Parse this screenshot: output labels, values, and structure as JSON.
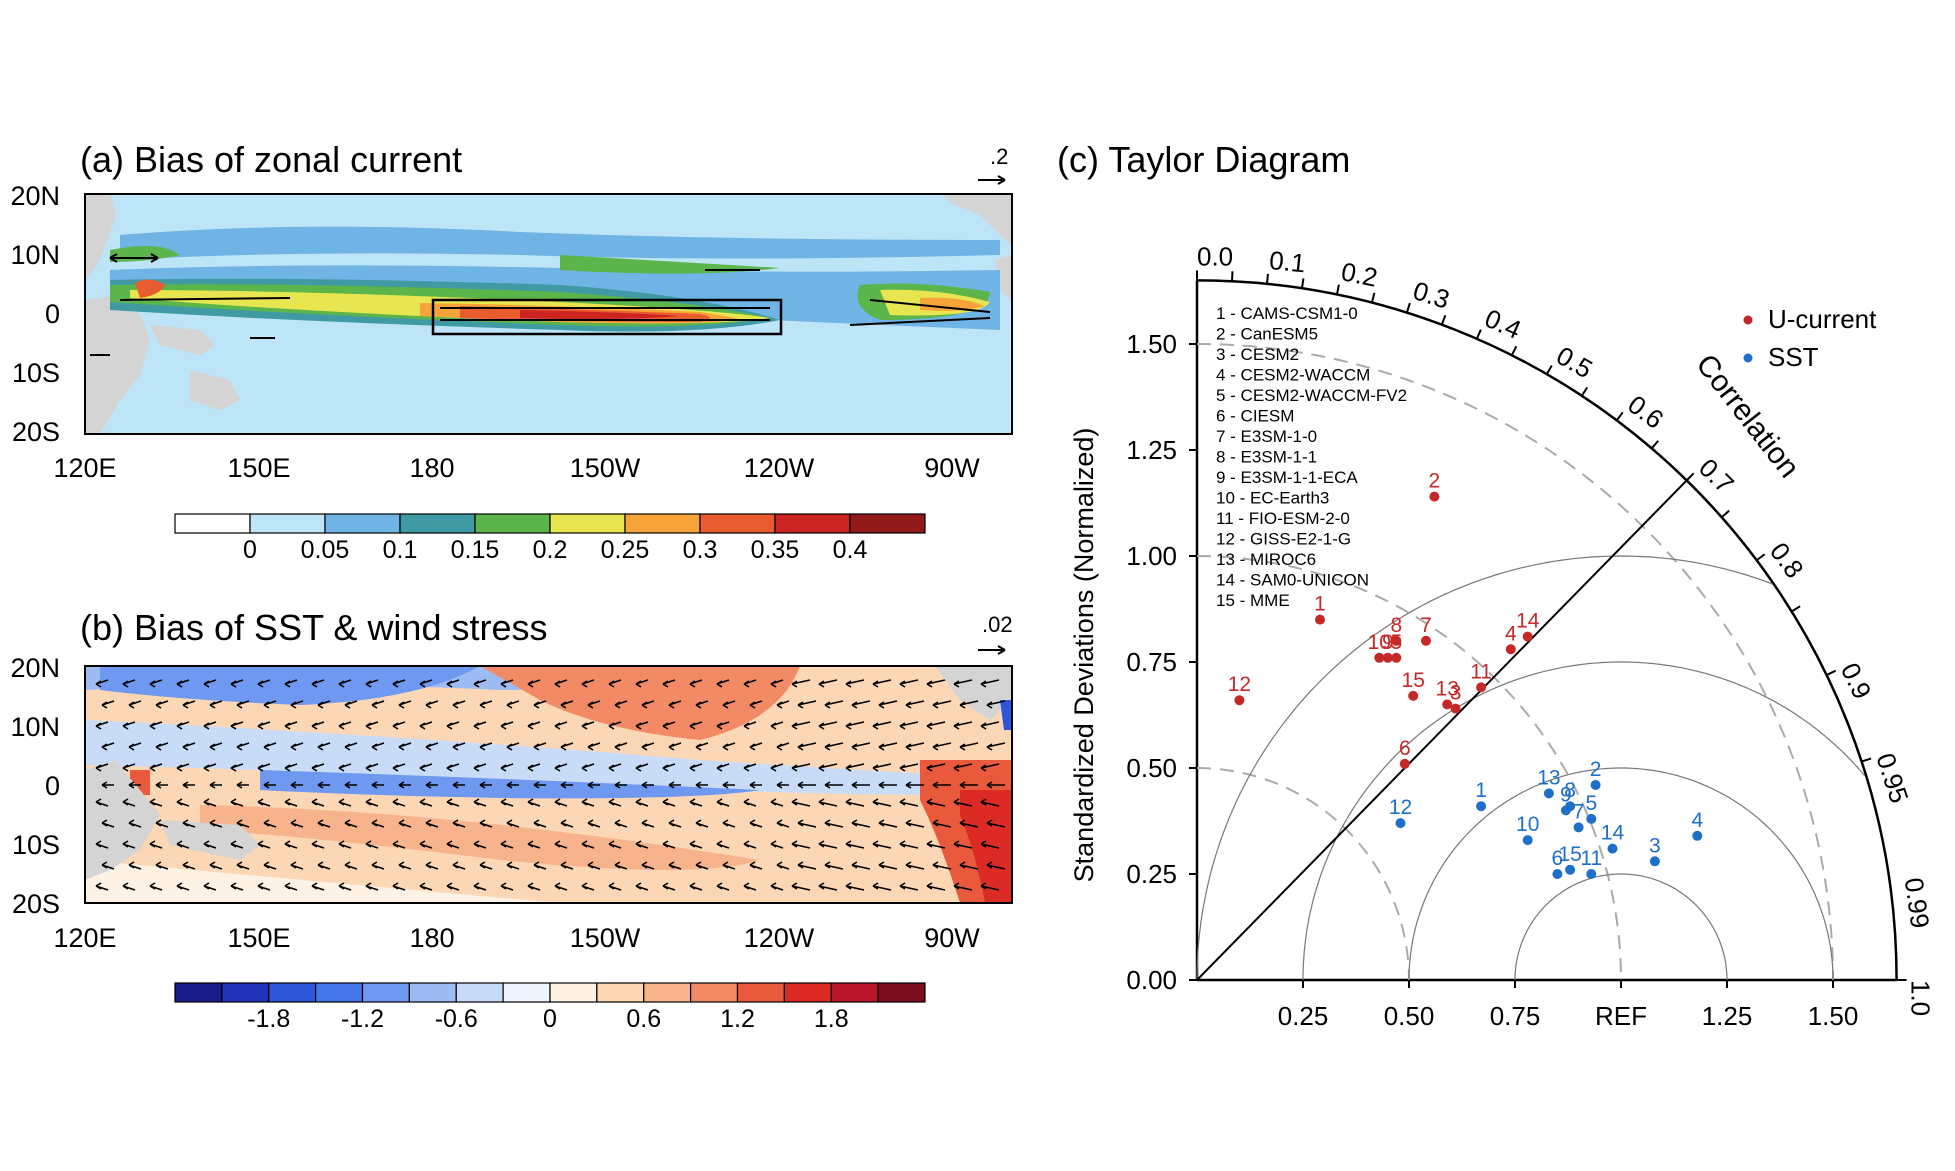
{
  "panel_a": {
    "title": "(a) Bias of zonal current",
    "ref_vector_label": ".2",
    "lat_labels": [
      "20N",
      "10N",
      "0",
      "10S",
      "20S"
    ],
    "lon_labels": [
      "120E",
      "150E",
      "180",
      "150W",
      "120W",
      "90W"
    ],
    "colorbar": {
      "labels": [
        "0",
        "0.05",
        "0.1",
        "0.15",
        "0.2",
        "0.25",
        "0.3",
        "0.35",
        "0.4"
      ],
      "colors": [
        "#ffffff",
        "#bde4f7",
        "#6fb4e4",
        "#3f9aa3",
        "#5cb54a",
        "#e8e650",
        "#f6a43a",
        "#e95c30",
        "#cc2323",
        "#931a1a"
      ]
    }
  },
  "panel_b": {
    "title": "(b) Bias of SST & wind stress",
    "ref_vector_label": ".02",
    "lat_labels": [
      "20N",
      "10N",
      "0",
      "10S",
      "20S"
    ],
    "lon_labels": [
      "120E",
      "150E",
      "180",
      "150W",
      "120W",
      "90W"
    ],
    "colorbar": {
      "labels": [
        "-1.8",
        "-1.2",
        "-0.6",
        "0",
        "0.6",
        "1.2",
        "1.8"
      ],
      "colors": [
        "#1a1a8a",
        "#2233b8",
        "#2c55d8",
        "#4476ea",
        "#6f98f0",
        "#9dbcf4",
        "#c8dcf8",
        "#eef5fd",
        "#fdf2e4",
        "#fbd7b6",
        "#f7b48c",
        "#f28a65",
        "#e95a3d",
        "#dc2a24",
        "#b81628",
        "#7d0e22"
      ]
    }
  },
  "panel_c": {
    "title": "(c) Taylor Diagram",
    "ylabel": "Standardized Deviations (Normalized)",
    "corr_label": "Correlation",
    "std_ticks": [
      "0.00",
      "0.25",
      "0.50",
      "0.75",
      "1.00",
      "1.25",
      "1.50"
    ],
    "x_ticks": [
      "0.25",
      "0.50",
      "0.75",
      "REF",
      "1.25",
      "1.50"
    ],
    "corr_ticks": [
      "0.0",
      "0.1",
      "0.2",
      "0.3",
      "0.4",
      "0.5",
      "0.6",
      "0.7",
      "0.8",
      "0.9",
      "0.95",
      "0.99",
      "1.0"
    ],
    "legend": [
      {
        "label": "U-current",
        "color": "#c62828"
      },
      {
        "label": "SST",
        "color": "#1e6fc8"
      }
    ],
    "models": [
      "1 - CAMS-CSM1-0",
      "2 - CanESM5",
      "3 - CESM2",
      "4 - CESM2-WACCM",
      "5 - CESM2-WACCM-FV2",
      "6 - CIESM",
      "7 - E3SM-1-0",
      "8 - E3SM-1-1",
      "9 - E3SM-1-1-ECA",
      "10 - EC-Earth3",
      "11 - FIO-ESM-2-0",
      "12 - GISS-E2-1-G",
      "13 - MIROC6",
      "14 - SAM0-UNICON",
      "15 - MME"
    ]
  },
  "chart_data": [
    {
      "type": "heatmap",
      "title": "(a) Bias of zonal current",
      "x_ticks": [
        "120E",
        "150E",
        "180",
        "150W",
        "120W",
        "90W"
      ],
      "y_ticks": [
        "20N",
        "10N",
        "0",
        "10S",
        "20S"
      ],
      "xlim": [
        120,
        282
      ],
      "ylim": [
        -20,
        20
      ],
      "levels": [
        0,
        0.05,
        0.1,
        0.15,
        0.2,
        0.25,
        0.3,
        0.35,
        0.4
      ],
      "box": {
        "lon": [
          180,
          240
        ],
        "lat": [
          -3,
          3
        ]
      },
      "reference_vector": 0.2
    },
    {
      "type": "heatmap",
      "title": "(b) Bias of SST & wind stress",
      "x_ticks": [
        "120E",
        "150E",
        "180",
        "150W",
        "120W",
        "90W"
      ],
      "y_ticks": [
        "20N",
        "10N",
        "0",
        "10S",
        "20S"
      ],
      "xlim": [
        120,
        282
      ],
      "ylim": [
        -20,
        20
      ],
      "levels": [
        -1.8,
        -1.2,
        -0.6,
        0,
        0.6,
        1.2,
        1.8
      ],
      "reference_vector": 0.02
    },
    {
      "type": "scatter",
      "title": "(c) Taylor Diagram",
      "ylabel": "Standardized Deviations (Normalized)",
      "xlim": [
        0,
        1.65
      ],
      "ylim": [
        0,
        1.65
      ],
      "series": [
        {
          "name": "U-current",
          "points": [
            {
              "label": "1",
              "x": 0.29,
              "y": 0.85
            },
            {
              "label": "2",
              "x": 0.56,
              "y": 1.14
            },
            {
              "label": "3",
              "x": 0.61,
              "y": 0.64
            },
            {
              "label": "4",
              "x": 0.74,
              "y": 0.78
            },
            {
              "label": "5",
              "x": 0.47,
              "y": 0.76
            },
            {
              "label": "6",
              "x": 0.49,
              "y": 0.51
            },
            {
              "label": "7",
              "x": 0.54,
              "y": 0.8
            },
            {
              "label": "8",
              "x": 0.47,
              "y": 0.8
            },
            {
              "label": "9",
              "x": 0.45,
              "y": 0.76
            },
            {
              "label": "10",
              "x": 0.43,
              "y": 0.76
            },
            {
              "label": "11",
              "x": 0.67,
              "y": 0.69
            },
            {
              "label": "12",
              "x": 0.1,
              "y": 0.66
            },
            {
              "label": "13",
              "x": 0.59,
              "y": 0.65
            },
            {
              "label": "14",
              "x": 0.78,
              "y": 0.81
            },
            {
              "label": "15",
              "x": 0.51,
              "y": 0.67
            }
          ]
        },
        {
          "name": "SST",
          "points": [
            {
              "label": "1",
              "x": 0.67,
              "y": 0.41
            },
            {
              "label": "2",
              "x": 0.94,
              "y": 0.46
            },
            {
              "label": "3",
              "x": 1.08,
              "y": 0.28
            },
            {
              "label": "4",
              "x": 1.18,
              "y": 0.34
            },
            {
              "label": "5",
              "x": 0.93,
              "y": 0.38
            },
            {
              "label": "6",
              "x": 0.85,
              "y": 0.25
            },
            {
              "label": "7",
              "x": 0.9,
              "y": 0.36
            },
            {
              "label": "8",
              "x": 0.88,
              "y": 0.41
            },
            {
              "label": "9",
              "x": 0.87,
              "y": 0.4
            },
            {
              "label": "10",
              "x": 0.78,
              "y": 0.33
            },
            {
              "label": "11",
              "x": 0.93,
              "y": 0.25
            },
            {
              "label": "12",
              "x": 0.48,
              "y": 0.37
            },
            {
              "label": "13",
              "x": 0.83,
              "y": 0.44
            },
            {
              "label": "14",
              "x": 0.98,
              "y": 0.31
            },
            {
              "label": "15",
              "x": 0.88,
              "y": 0.26
            }
          ]
        }
      ]
    }
  ]
}
